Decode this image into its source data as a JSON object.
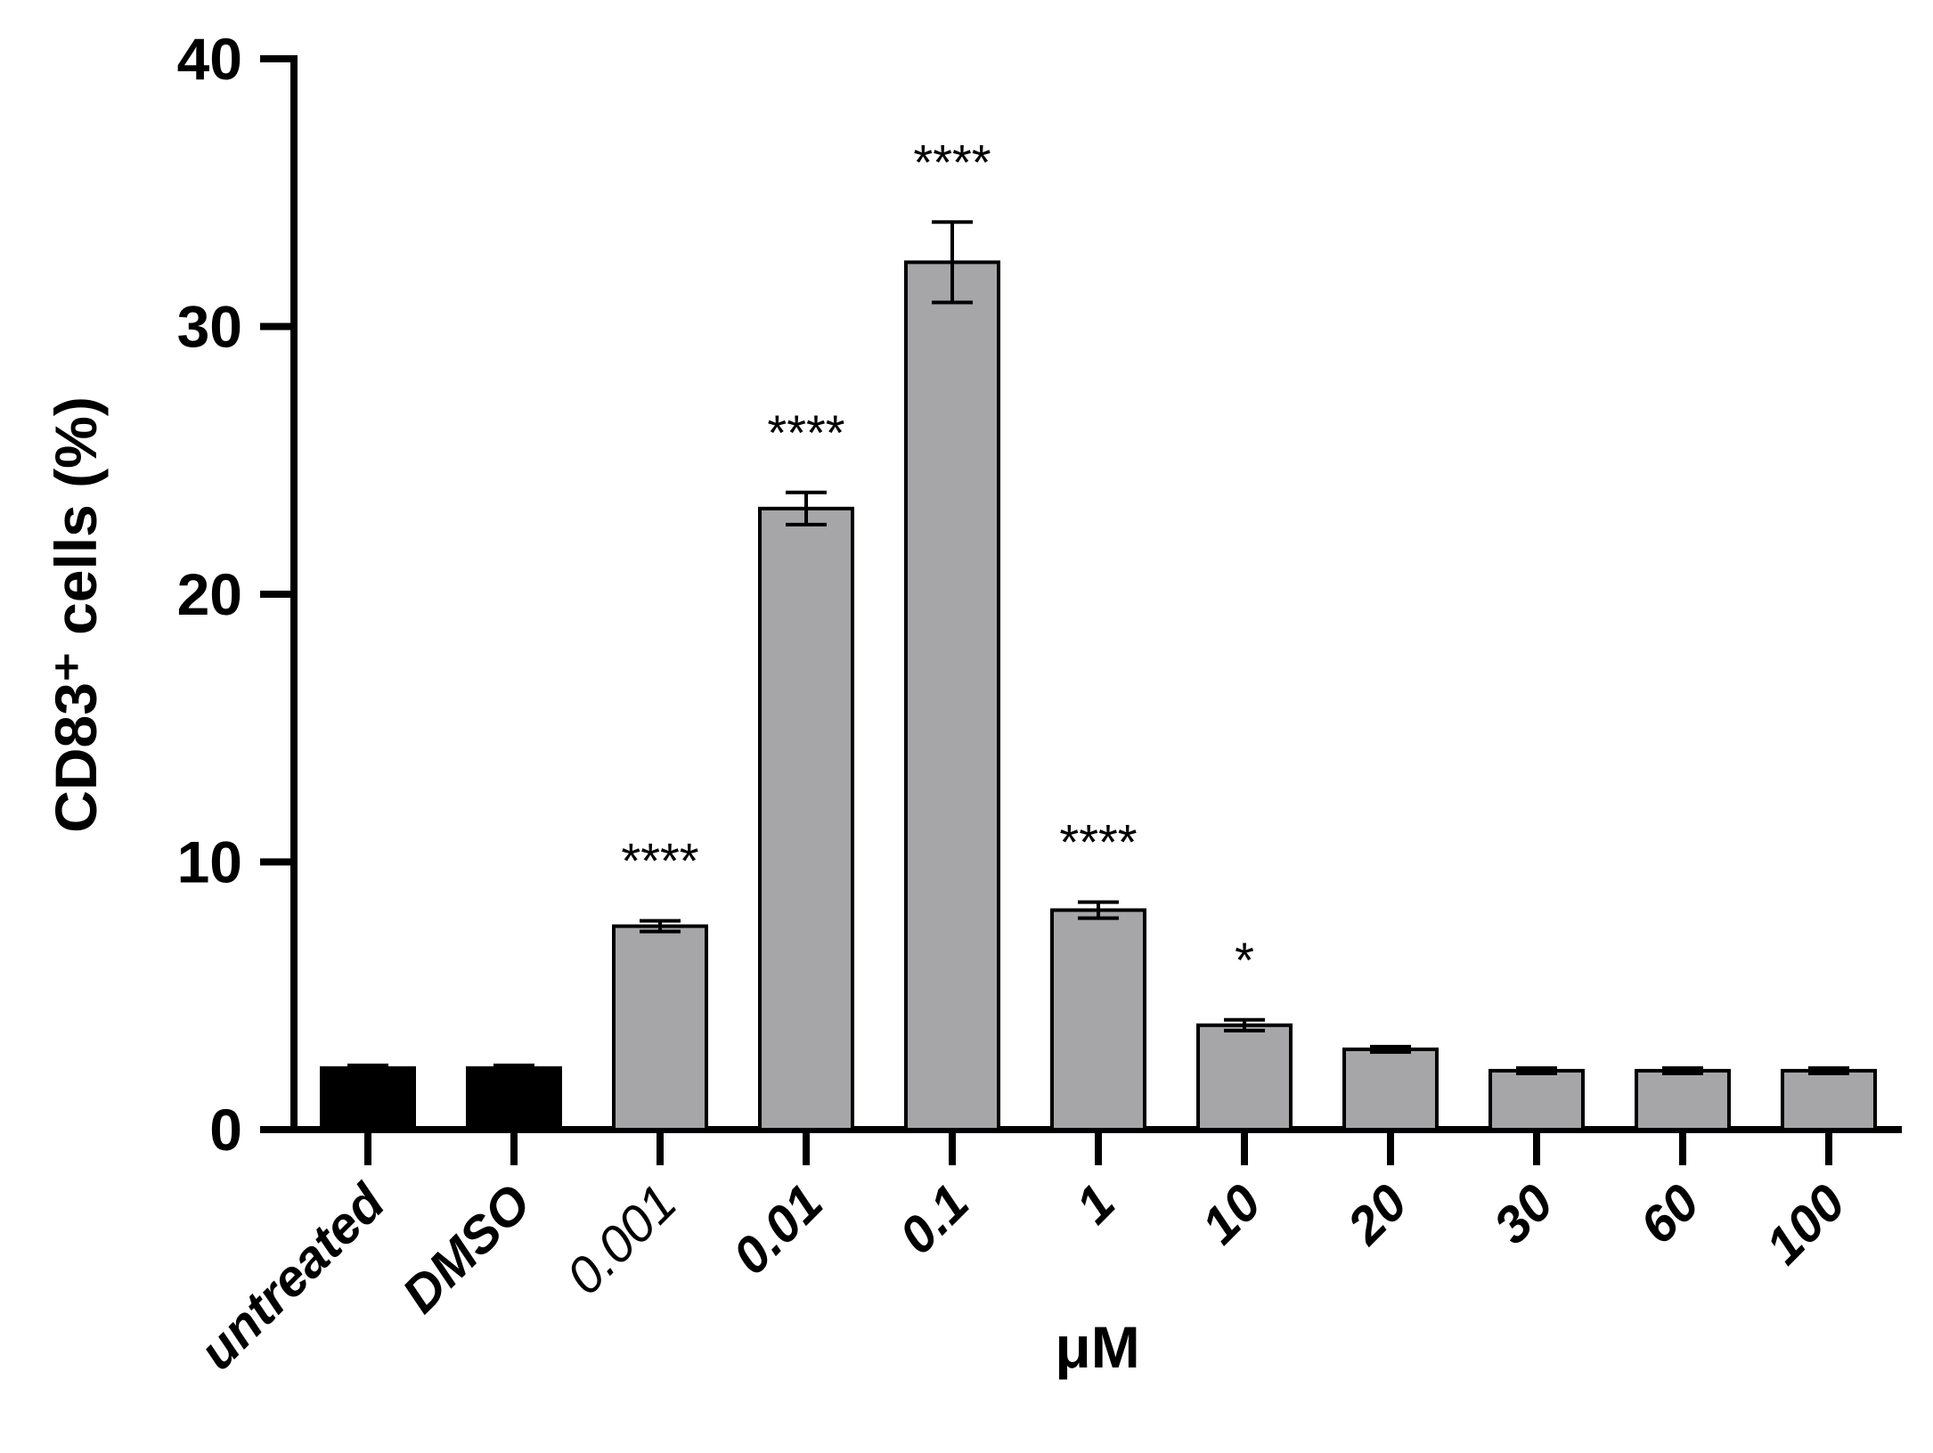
{
  "chart_data": {
    "type": "bar",
    "categories": [
      "untreated",
      "DMSO",
      "0.001",
      "0.01",
      "0.1",
      "1",
      "10",
      "20",
      "30",
      "60",
      "100"
    ],
    "values": [
      2.3,
      2.3,
      7.6,
      23.2,
      32.4,
      8.2,
      3.9,
      3.0,
      2.2,
      2.2,
      2.2
    ],
    "errors": [
      0.1,
      0.1,
      0.2,
      0.6,
      1.5,
      0.3,
      0.2,
      0.1,
      0.1,
      0.1,
      0.1
    ],
    "significance": [
      "",
      "",
      "****",
      "****",
      "****",
      "****",
      "*",
      "",
      "",
      "",
      ""
    ],
    "bar_colors": [
      "#000000",
      "#000000",
      "#a6a5a8",
      "#a6a5a8",
      "#a6a5a8",
      "#a6a5a8",
      "#a6a5a8",
      "#a6a5a8",
      "#a6a5a8",
      "#a6a5a8",
      "#a6a5a8"
    ],
    "light_tick_labels": [
      "0.001"
    ],
    "title": "",
    "xlabel": "μM",
    "ylabel": "CD83⁺ cells (%)",
    "ylim": [
      0,
      40
    ],
    "yticks": [
      "0",
      "10",
      "20",
      "30",
      "40"
    ],
    "grid": false
  }
}
